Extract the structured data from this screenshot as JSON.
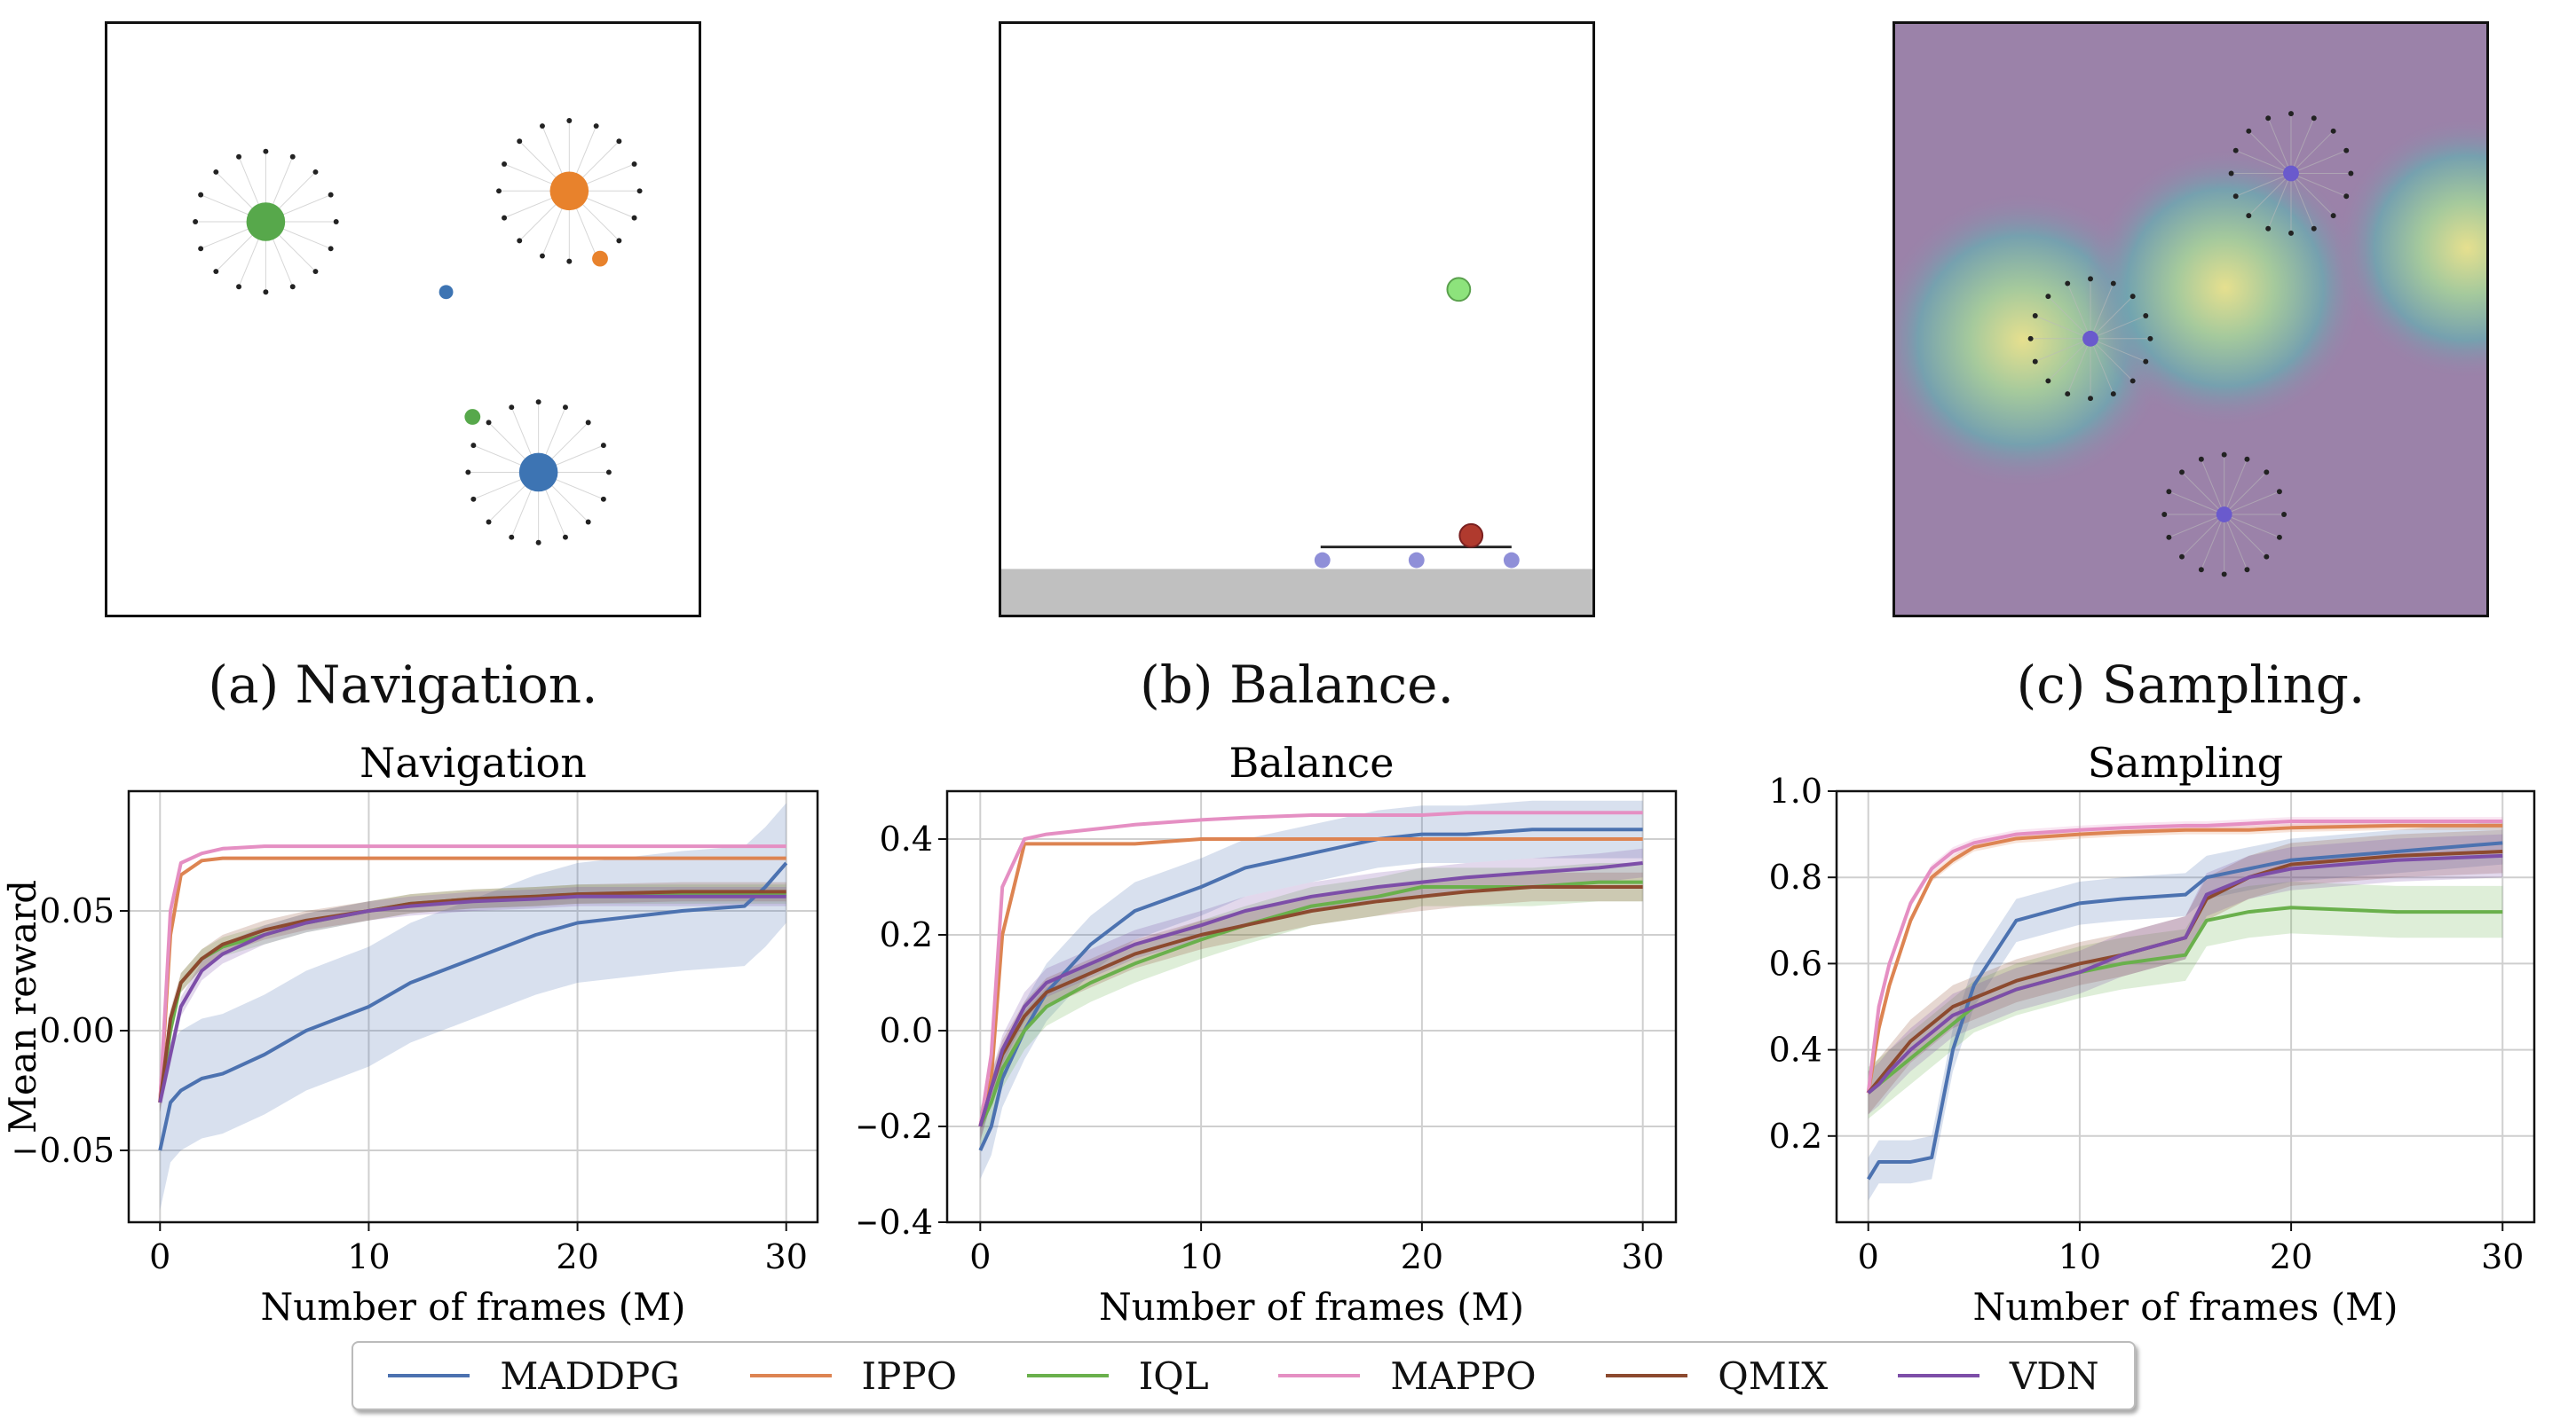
{
  "captions": {
    "navigation": "(a) Navigation.",
    "balance": "(b) Balance.",
    "sampling": "(c) Sampling."
  },
  "legend": [
    {
      "name": "MADDPG",
      "color": "#4c72b0"
    },
    {
      "name": "IPPO",
      "color": "#dd8452"
    },
    {
      "name": "IQL",
      "color": "#6ab04c"
    },
    {
      "name": "MAPPO",
      "color": "#e58fc3"
    },
    {
      "name": "QMIX",
      "color": "#8c4a2f"
    },
    {
      "name": "VDN",
      "color": "#7d4ea8"
    }
  ],
  "chart_data": [
    {
      "type": "line",
      "title": "Navigation",
      "xlabel": "Number of frames (M)",
      "ylabel": "Mean reward",
      "xlim": [
        -1.5,
        31.5
      ],
      "ylim": [
        -0.08,
        0.1
      ],
      "xticks": [
        0,
        10,
        20,
        30
      ],
      "yticks": [
        -0.05,
        0.0,
        0.05
      ],
      "ytick_labels": [
        "−0.05",
        "0.00",
        "0.05"
      ],
      "grid": true,
      "x": [
        0,
        0.5,
        1,
        2,
        3,
        5,
        7,
        10,
        12,
        15,
        18,
        20,
        25,
        28,
        29,
        30
      ],
      "series": [
        {
          "name": "MADDPG",
          "values": [
            -0.05,
            -0.03,
            -0.025,
            -0.02,
            -0.018,
            -0.01,
            0.0,
            0.01,
            0.02,
            0.03,
            0.04,
            0.045,
            0.05,
            0.052,
            0.06,
            0.07
          ],
          "band": 0.025
        },
        {
          "name": "IPPO",
          "values": [
            -0.03,
            0.04,
            0.065,
            0.071,
            0.072,
            0.072,
            0.072,
            0.072,
            0.072,
            0.072,
            0.072,
            0.072,
            0.072,
            0.072,
            0.072,
            0.072
          ],
          "band": 0.0
        },
        {
          "name": "IQL",
          "values": [
            -0.03,
            0.0,
            0.02,
            0.03,
            0.035,
            0.04,
            0.045,
            0.05,
            0.053,
            0.055,
            0.056,
            0.057,
            0.057,
            0.057,
            0.057,
            0.057
          ],
          "band": 0.004
        },
        {
          "name": "MAPPO",
          "values": [
            -0.03,
            0.05,
            0.07,
            0.074,
            0.076,
            0.077,
            0.077,
            0.077,
            0.077,
            0.077,
            0.077,
            0.077,
            0.077,
            0.077,
            0.077,
            0.077
          ],
          "band": 0.0
        },
        {
          "name": "QMIX",
          "values": [
            -0.03,
            0.005,
            0.02,
            0.03,
            0.036,
            0.042,
            0.046,
            0.05,
            0.053,
            0.055,
            0.056,
            0.057,
            0.058,
            0.058,
            0.058,
            0.058
          ],
          "band": 0.004
        },
        {
          "name": "VDN",
          "values": [
            -0.03,
            -0.01,
            0.01,
            0.025,
            0.032,
            0.04,
            0.045,
            0.05,
            0.052,
            0.054,
            0.055,
            0.056,
            0.056,
            0.056,
            0.056,
            0.056
          ],
          "band": 0.004
        }
      ]
    },
    {
      "type": "line",
      "title": "Balance",
      "xlabel": "Number of frames (M)",
      "ylabel": "",
      "xlim": [
        -1.5,
        31.5
      ],
      "ylim": [
        -0.4,
        0.5
      ],
      "xticks": [
        0,
        10,
        20,
        30
      ],
      "yticks": [
        -0.4,
        -0.2,
        0.0,
        0.2,
        0.4
      ],
      "ytick_labels": [
        "−0.4",
        "−0.2",
        "0.0",
        "0.2",
        "0.4"
      ],
      "grid": true,
      "x": [
        0,
        0.5,
        1,
        2,
        3,
        5,
        7,
        10,
        12,
        15,
        18,
        20,
        22,
        25,
        28,
        30
      ],
      "series": [
        {
          "name": "MADDPG",
          "values": [
            -0.25,
            -0.2,
            -0.1,
            0.0,
            0.08,
            0.18,
            0.25,
            0.3,
            0.34,
            0.37,
            0.4,
            0.41,
            0.41,
            0.42,
            0.42,
            0.42
          ],
          "band": 0.06
        },
        {
          "name": "IPPO",
          "values": [
            -0.2,
            -0.1,
            0.2,
            0.39,
            0.39,
            0.39,
            0.39,
            0.4,
            0.4,
            0.4,
            0.4,
            0.4,
            0.4,
            0.4,
            0.4,
            0.4
          ],
          "band": 0.0
        },
        {
          "name": "IQL",
          "values": [
            -0.2,
            -0.15,
            -0.08,
            0.0,
            0.05,
            0.1,
            0.14,
            0.19,
            0.22,
            0.26,
            0.28,
            0.3,
            0.3,
            0.3,
            0.31,
            0.31
          ],
          "band": 0.04
        },
        {
          "name": "MAPPO",
          "values": [
            -0.2,
            -0.05,
            0.3,
            0.4,
            0.41,
            0.42,
            0.43,
            0.44,
            0.445,
            0.45,
            0.45,
            0.45,
            0.455,
            0.455,
            0.455,
            0.455
          ],
          "band": 0.0
        },
        {
          "name": "QMIX",
          "values": [
            -0.2,
            -0.12,
            -0.05,
            0.03,
            0.08,
            0.12,
            0.16,
            0.2,
            0.22,
            0.25,
            0.27,
            0.28,
            0.29,
            0.3,
            0.3,
            0.3
          ],
          "band": 0.03
        },
        {
          "name": "VDN",
          "values": [
            -0.2,
            -0.12,
            -0.04,
            0.05,
            0.1,
            0.14,
            0.18,
            0.22,
            0.25,
            0.28,
            0.3,
            0.31,
            0.32,
            0.33,
            0.34,
            0.35
          ],
          "band": 0.03
        }
      ]
    },
    {
      "type": "line",
      "title": "Sampling",
      "xlabel": "Number of frames (M)",
      "ylabel": "",
      "xlim": [
        -1.5,
        31.5
      ],
      "ylim": [
        0.0,
        1.0
      ],
      "xticks": [
        0,
        10,
        20,
        30
      ],
      "yticks": [
        0.2,
        0.4,
        0.6,
        0.8,
        1.0
      ],
      "ytick_labels": [
        "0.2",
        "0.4",
        "0.6",
        "0.8",
        "1.0"
      ],
      "grid": true,
      "x": [
        0,
        0.5,
        1,
        2,
        3,
        4,
        5,
        7,
        10,
        12,
        15,
        16,
        18,
        20,
        25,
        30
      ],
      "series": [
        {
          "name": "MADDPG",
          "values": [
            0.1,
            0.14,
            0.14,
            0.14,
            0.15,
            0.4,
            0.55,
            0.7,
            0.74,
            0.75,
            0.76,
            0.8,
            0.82,
            0.84,
            0.86,
            0.88
          ],
          "band": 0.05
        },
        {
          "name": "IPPO",
          "values": [
            0.3,
            0.45,
            0.55,
            0.7,
            0.8,
            0.84,
            0.87,
            0.89,
            0.9,
            0.905,
            0.91,
            0.91,
            0.91,
            0.915,
            0.92,
            0.92
          ],
          "band": 0.01
        },
        {
          "name": "IQL",
          "values": [
            0.3,
            0.32,
            0.34,
            0.38,
            0.42,
            0.46,
            0.5,
            0.54,
            0.58,
            0.6,
            0.62,
            0.7,
            0.72,
            0.73,
            0.72,
            0.72
          ],
          "band": 0.06
        },
        {
          "name": "MAPPO",
          "values": [
            0.3,
            0.5,
            0.6,
            0.74,
            0.82,
            0.86,
            0.88,
            0.9,
            0.91,
            0.915,
            0.92,
            0.92,
            0.925,
            0.93,
            0.93,
            0.93
          ],
          "band": 0.01
        },
        {
          "name": "QMIX",
          "values": [
            0.3,
            0.33,
            0.36,
            0.42,
            0.46,
            0.5,
            0.52,
            0.56,
            0.6,
            0.62,
            0.66,
            0.75,
            0.8,
            0.83,
            0.85,
            0.86
          ],
          "band": 0.05
        },
        {
          "name": "VDN",
          "values": [
            0.3,
            0.32,
            0.35,
            0.4,
            0.44,
            0.48,
            0.5,
            0.54,
            0.58,
            0.62,
            0.66,
            0.76,
            0.8,
            0.82,
            0.84,
            0.85
          ],
          "band": 0.05
        }
      ]
    }
  ]
}
